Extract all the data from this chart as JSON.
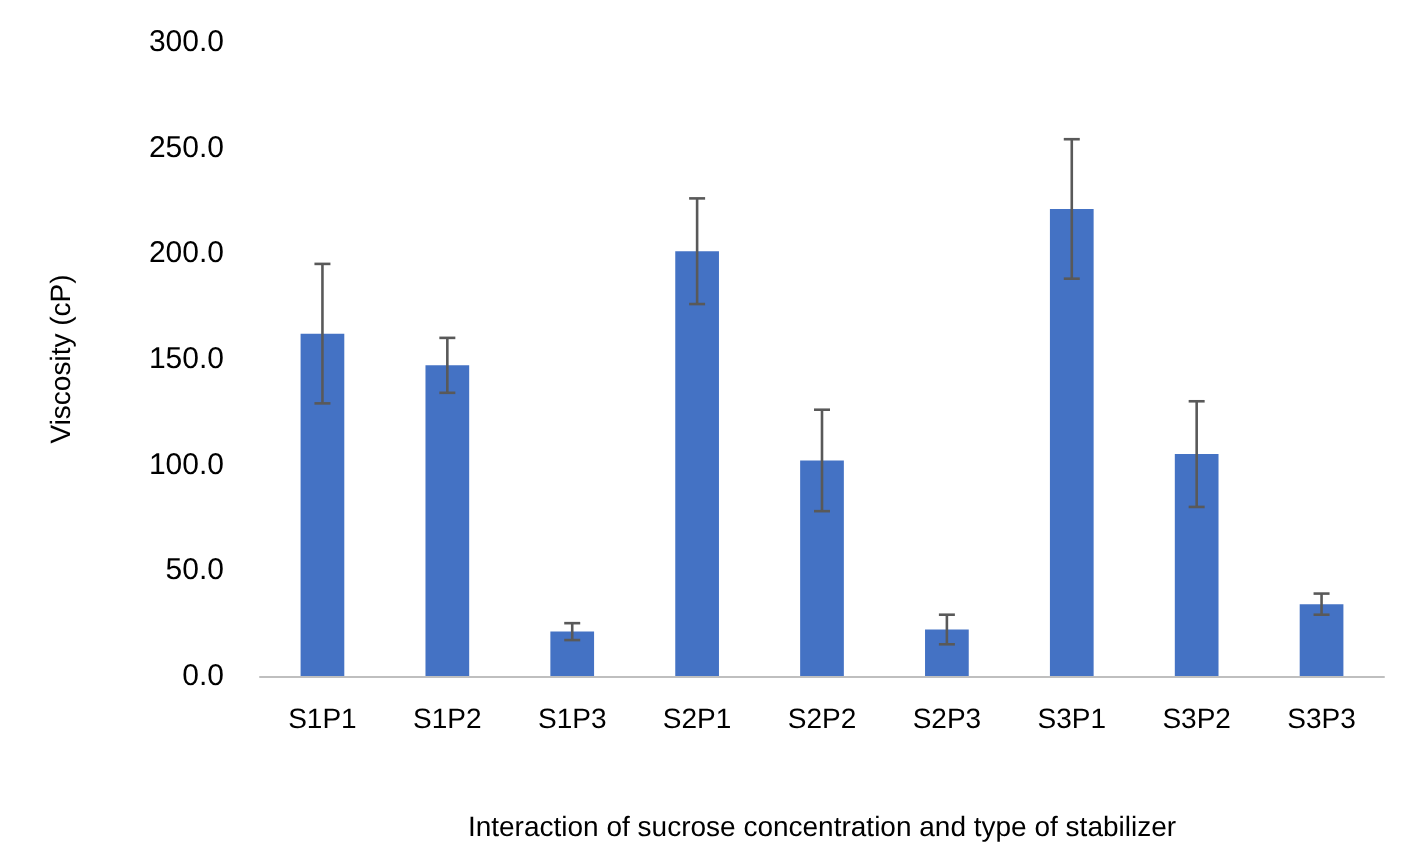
{
  "chart_data": {
    "type": "bar",
    "xlabel": "Interaction of sucrose concentration and type of stabilizer",
    "ylabel": "Viscosity (cP)",
    "categories": [
      "S1P1",
      "S1P2",
      "S1P3",
      "S2P1",
      "S2P2",
      "S2P3",
      "S3P1",
      "S3P2",
      "S3P3"
    ],
    "values": [
      162,
      147,
      21,
      201,
      102,
      22,
      221,
      105,
      34
    ],
    "errors": [
      33,
      13,
      4,
      25,
      24,
      7,
      33,
      25,
      5
    ],
    "color": "#4472c4",
    "ylim": [
      0,
      300
    ],
    "yticks": [
      {
        "value": 0,
        "label": "0.0"
      },
      {
        "value": 50,
        "label": "50.0"
      },
      {
        "value": 100,
        "label": "100.0"
      },
      {
        "value": 150,
        "label": "150.0"
      },
      {
        "value": 200,
        "label": "200.0"
      },
      {
        "value": 250,
        "label": "250.0"
      },
      {
        "value": 300,
        "label": "300.0"
      }
    ],
    "grid": false
  }
}
